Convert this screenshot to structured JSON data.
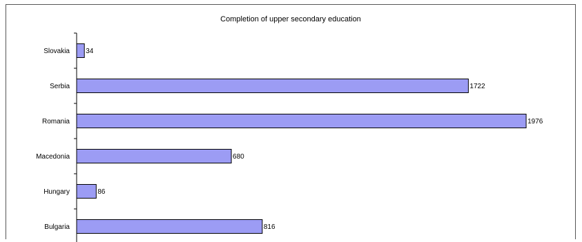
{
  "chart_data": {
    "type": "bar",
    "orientation": "horizontal",
    "title": "Completion of upper secondary education",
    "xlabel": "",
    "ylabel": "",
    "categories": [
      "Slovakia",
      "Serbia",
      "Romania",
      "Macedonia",
      "Hungary",
      "Bulgaria"
    ],
    "values": [
      34,
      1722,
      1976,
      680,
      86,
      816
    ],
    "value_labels": [
      "34",
      "1722",
      "1976",
      "680",
      "86",
      "816"
    ],
    "xlim": [
      0,
      2000
    ],
    "grid": false,
    "legend": "none",
    "colors": {
      "bar_fill": "#9c9cf4",
      "bar_stroke": "#000000",
      "axis": "#000000"
    }
  }
}
